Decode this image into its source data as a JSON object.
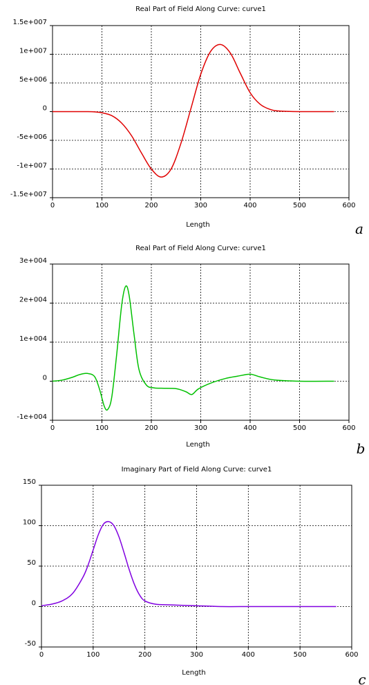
{
  "chart_data": [
    {
      "type": "line",
      "title": "Real Part of Field Along Curve: curve1",
      "xlabel": "Length",
      "ylabel": "",
      "panel_label": "a",
      "xlim": [
        0,
        600
      ],
      "ylim": [
        -15000000,
        15000000
      ],
      "x_ticks": [
        0,
        100,
        200,
        300,
        400,
        500,
        600
      ],
      "x_tick_labels": [
        "0",
        "100",
        "200",
        "300",
        "400",
        "500",
        "600"
      ],
      "y_ticks": [
        -15000000,
        -10000000,
        -5000000,
        0,
        5000000,
        10000000,
        15000000
      ],
      "y_tick_labels": [
        "-1.5e+007",
        "-1e+007",
        "-5e+006",
        "0",
        "5e+006",
        "1e+007",
        "1.5e+007"
      ],
      "grid": true,
      "series": [
        {
          "color": "#e00000",
          "x": [
            0,
            50,
            80,
            100,
            120,
            140,
            160,
            180,
            200,
            220,
            240,
            260,
            280,
            300,
            320,
            340,
            360,
            380,
            400,
            420,
            440,
            460,
            500,
            570
          ],
          "y": [
            0,
            0,
            -20000,
            -200000,
            -700000,
            -2000000,
            -4200000,
            -7200000,
            -10000000,
            -11400000,
            -10000000,
            -5500000,
            500000,
            6500000,
            10500000,
            11700000,
            10200000,
            6700000,
            3300000,
            1300000,
            400000,
            100000,
            0,
            0
          ]
        }
      ]
    },
    {
      "type": "line",
      "title": "Real Part of Field Along Curve: curve1",
      "xlabel": "Length",
      "ylabel": "",
      "panel_label": "b",
      "xlim": [
        0,
        600
      ],
      "ylim": [
        -10000,
        30000
      ],
      "x_ticks": [
        0,
        100,
        200,
        300,
        400,
        500,
        600
      ],
      "x_tick_labels": [
        "0",
        "100",
        "200",
        "300",
        "400",
        "500",
        "600"
      ],
      "y_ticks": [
        -10000,
        0,
        10000,
        20000,
        30000
      ],
      "y_tick_labels": [
        "-1e+004",
        "0",
        "1e+004",
        "2e+004",
        "3e+004"
      ],
      "grid": true,
      "series": [
        {
          "color": "#00c000",
          "x": [
            0,
            20,
            40,
            55,
            70,
            85,
            95,
            105,
            112,
            120,
            130,
            140,
            148,
            155,
            165,
            175,
            190,
            205,
            220,
            250,
            270,
            282,
            295,
            320,
            350,
            375,
            400,
            420,
            450,
            500,
            570
          ],
          "y": [
            0,
            300,
            1000,
            1700,
            2000,
            1200,
            -2000,
            -6500,
            -7200,
            -4000,
            7000,
            19500,
            24300,
            22000,
            12000,
            3000,
            -1000,
            -1700,
            -1800,
            -1900,
            -2700,
            -3400,
            -2000,
            -500,
            700,
            1300,
            1800,
            1100,
            300,
            0,
            0
          ]
        }
      ]
    },
    {
      "type": "line",
      "title": "Imaginary Part of Field Along Curve: curve1",
      "xlabel": "Length",
      "ylabel": "",
      "panel_label": "c",
      "xlim": [
        0,
        600
      ],
      "ylim": [
        -50,
        150
      ],
      "x_ticks": [
        0,
        100,
        200,
        300,
        400,
        500,
        600
      ],
      "x_tick_labels": [
        "0",
        "100",
        "200",
        "300",
        "400",
        "500",
        "600"
      ],
      "y_ticks": [
        -50,
        0,
        50,
        100,
        150
      ],
      "y_tick_labels": [
        "-50",
        "0",
        "50",
        "100",
        "150"
      ],
      "grid": true,
      "series": [
        {
          "color": "#8000e0",
          "x": [
            0,
            20,
            40,
            60,
            80,
            90,
            100,
            110,
            120,
            130,
            140,
            150,
            160,
            170,
            180,
            190,
            200,
            220,
            250,
            300,
            350,
            400,
            450,
            500,
            570
          ],
          "y": [
            1,
            3,
            7,
            16,
            36,
            51,
            70,
            89,
            102,
            105,
            100,
            86,
            66,
            45,
            27,
            14,
            7,
            3,
            2,
            1,
            0,
            0,
            0,
            0,
            0
          ]
        }
      ]
    }
  ]
}
